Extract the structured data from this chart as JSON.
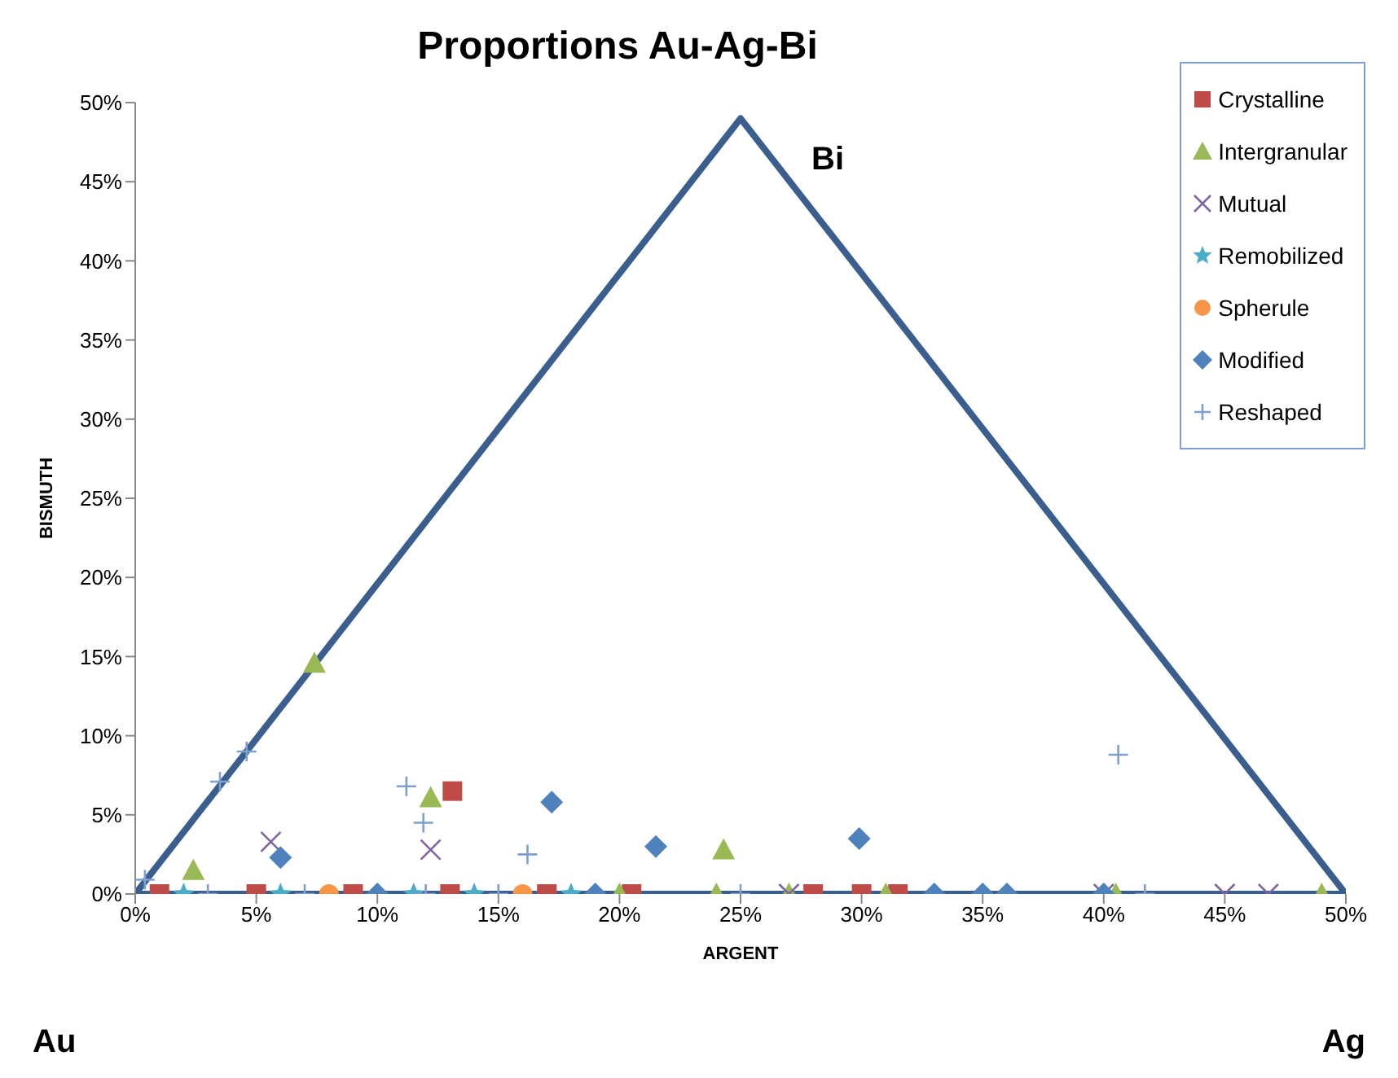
{
  "chart_data": {
    "type": "scatter",
    "title": "Proportions Au-Ag-Bi",
    "xlabel": "ARGENT",
    "ylabel": "BISMUTH",
    "xlim": [
      0,
      50
    ],
    "ylim": [
      0,
      50
    ],
    "xticks": [
      {
        "value": 0,
        "label": "0%"
      },
      {
        "value": 5,
        "label": "5%"
      },
      {
        "value": 10,
        "label": "10%"
      },
      {
        "value": 15,
        "label": "15%"
      },
      {
        "value": 20,
        "label": "20%"
      },
      {
        "value": 25,
        "label": "25%"
      },
      {
        "value": 30,
        "label": "30%"
      },
      {
        "value": 35,
        "label": "35%"
      },
      {
        "value": 40,
        "label": "40%"
      },
      {
        "value": 45,
        "label": "45%"
      },
      {
        "value": 50,
        "label": "50%"
      }
    ],
    "yticks": [
      {
        "value": 0,
        "label": "0%"
      },
      {
        "value": 5,
        "label": "5%"
      },
      {
        "value": 10,
        "label": "10%"
      },
      {
        "value": 15,
        "label": "15%"
      },
      {
        "value": 20,
        "label": "20%"
      },
      {
        "value": 25,
        "label": "25%"
      },
      {
        "value": 30,
        "label": "30%"
      },
      {
        "value": 35,
        "label": "35%"
      },
      {
        "value": 40,
        "label": "40%"
      },
      {
        "value": 45,
        "label": "45%"
      },
      {
        "value": 50,
        "label": "50%"
      }
    ],
    "grid": false,
    "legend": "top right",
    "annotations": [
      "Bi",
      "Au",
      "Ag"
    ],
    "series": [
      {
        "name": "Crystalline",
        "color": "#be4b48",
        "marker": "square",
        "x": [
          13.1,
          1,
          5,
          9,
          13,
          17,
          20.5,
          28,
          30,
          31.5
        ],
        "values": [
          6.5,
          0,
          0,
          0,
          0,
          0,
          0,
          0,
          0,
          0
        ]
      },
      {
        "name": "Intergranular",
        "color": "#98b954",
        "marker": "triangle",
        "x": [
          7.4,
          2.4,
          12.2,
          24.3,
          20,
          24,
          27,
          31,
          40.5,
          49
        ],
        "values": [
          14.6,
          1.5,
          6.1,
          2.8,
          0,
          0,
          0,
          0,
          0,
          0
        ]
      },
      {
        "name": "Mutual",
        "color": "#8064a2",
        "marker": "cross",
        "x": [
          5.6,
          12.2,
          27,
          40,
          45,
          46.8
        ],
        "values": [
          3.3,
          2.8,
          0,
          0,
          0,
          0
        ]
      },
      {
        "name": "Remobilized",
        "color": "#4bacc6",
        "marker": "star",
        "x": [
          2,
          6,
          11.5,
          14,
          18
        ],
        "values": [
          0,
          0,
          0,
          0,
          0
        ]
      },
      {
        "name": "Spherule",
        "color": "#f79646",
        "marker": "circle",
        "x": [
          8,
          16
        ],
        "values": [
          0,
          0
        ]
      },
      {
        "name": "Modified",
        "color": "#4f81bd",
        "marker": "diamond",
        "x": [
          6,
          17.2,
          21.5,
          29.9,
          10,
          19,
          33,
          35,
          36,
          40
        ],
        "values": [
          2.3,
          5.8,
          3,
          3.5,
          0,
          0,
          0,
          0,
          0,
          0
        ]
      },
      {
        "name": "Reshaped",
        "color": "#7f9fd0",
        "marker": "plus",
        "x": [
          0.4,
          3.5,
          4.6,
          11.2,
          11.9,
          16.2,
          40.6,
          3,
          7,
          12,
          15,
          25,
          41.7
        ],
        "values": [
          0.9,
          7.1,
          9,
          6.8,
          4.5,
          2.5,
          8.8,
          0,
          0,
          0,
          0,
          0,
          0
        ]
      },
      {
        "type": "line",
        "color": "#3a5f8f",
        "marker": "none",
        "x": [
          0,
          25,
          50
        ],
        "values": [
          0,
          49,
          0
        ]
      },
      {
        "type": "line",
        "color": "#3a5f8f",
        "marker": "none",
        "x": [
          0,
          50
        ],
        "values": [
          0,
          0
        ]
      }
    ]
  }
}
